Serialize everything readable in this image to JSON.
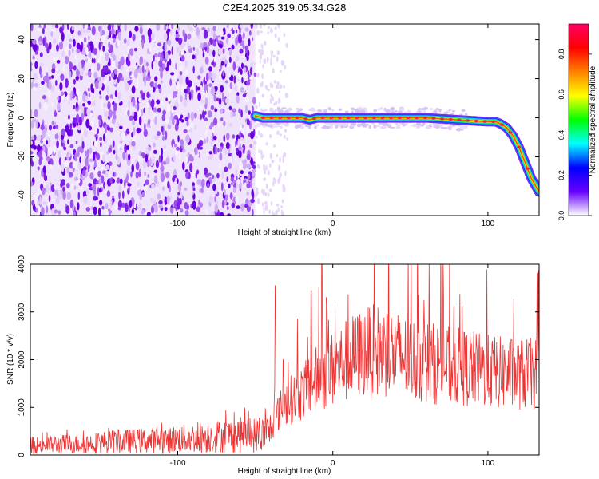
{
  "figure": {
    "title": "C2E4.2025.319.05.34.G28"
  },
  "colors": {
    "snr_line": "#ee3333",
    "spec_noise": "#8a2be2",
    "frame": "#000000"
  },
  "chart_data": [
    {
      "type": "heatmap",
      "title": "",
      "xlabel": "Height of straight line (km)",
      "ylabel": "Frequency (Hz)",
      "xlim": [
        -195,
        133
      ],
      "ylim": [
        -50,
        48
      ],
      "xticks": [
        -100,
        0,
        100
      ],
      "xtick_labels": [
        "-100",
        "0",
        "100"
      ],
      "yticks": [
        -40,
        -20,
        0,
        20,
        40
      ],
      "ytick_labels": [
        "-40",
        "-20",
        "0",
        "20",
        "40"
      ],
      "grid": false,
      "noise_region_x": [
        -195,
        -50
      ],
      "ridge": {
        "x": [
          -50,
          -45,
          -40,
          -30,
          -20,
          -15,
          -10,
          0,
          20,
          40,
          60,
          80,
          100,
          105,
          108,
          112,
          116,
          120,
          124,
          128,
          133
        ],
        "y": [
          1,
          0,
          0,
          0,
          0,
          -1,
          0,
          0,
          0,
          0,
          0,
          -1,
          -2,
          -2,
          -3,
          -5,
          -9,
          -15,
          -23,
          -31,
          -38
        ]
      },
      "colorbar": {
        "label": "Normalized spectral amplitude",
        "range": [
          0,
          0.95
        ],
        "ticks": [
          0.0,
          0.2,
          0.4,
          0.6,
          0.8
        ],
        "tick_labels": [
          "0.0",
          "0.2",
          "0.4",
          "0.6",
          "0.8"
        ],
        "colormap": [
          "#ffffff",
          "#6600ff",
          "#0000ff",
          "#00ffff",
          "#00ff00",
          "#ffff00",
          "#ff8000",
          "#ff0000",
          "#ff0066"
        ]
      }
    },
    {
      "type": "line",
      "title": "",
      "xlabel": "Height of straight line (km)",
      "ylabel": "SNR (10 * v/v)",
      "xlim": [
        -195,
        133
      ],
      "ylim": [
        0,
        4000
      ],
      "xticks": [
        -100,
        0,
        100
      ],
      "xtick_labels": [
        "-100",
        "0",
        "100"
      ],
      "yticks": [
        0,
        1000,
        2000,
        3000,
        4000
      ],
      "ytick_labels": [
        "0",
        "1000",
        "2000",
        "3000",
        "4000"
      ],
      "grid": false,
      "series": [
        {
          "x": [
            -195,
            -180,
            -160,
            -140,
            -120,
            -100,
            -80,
            -60,
            -45,
            -40,
            -35,
            -30,
            -20,
            -10,
            0,
            10,
            20,
            30,
            40,
            50,
            60,
            70,
            80,
            90,
            100,
            110,
            120,
            133
          ],
          "y": [
            200,
            220,
            240,
            280,
            300,
            330,
            380,
            420,
            430,
            500,
            900,
            1100,
            1300,
            1600,
            1800,
            2000,
            2150,
            2200,
            2100,
            2000,
            1950,
            1900,
            1850,
            1800,
            1750,
            1720,
            1700,
            1700
          ],
          "spikes": [
            {
              "x": -37,
              "y": 3550
            },
            {
              "x": -32,
              "y": 2000
            },
            {
              "x": -14,
              "y": 3450
            },
            {
              "x": -7,
              "y": 4000
            },
            {
              "x": -4,
              "y": 3300
            },
            {
              "x": 35,
              "y": 2950
            }
          ]
        }
      ]
    }
  ]
}
